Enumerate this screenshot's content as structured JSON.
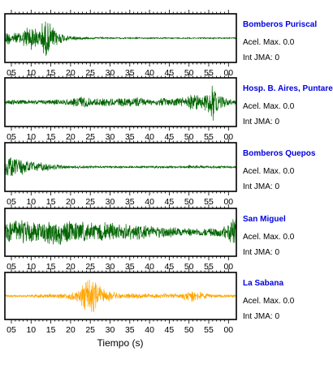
{
  "chart_data": {
    "type": "line",
    "xlabel": "Tiempo (s)",
    "x_tick_labels": [
      "05",
      "10",
      "15",
      "20",
      "25",
      "30",
      "35",
      "40",
      "45",
      "50",
      "55",
      "00"
    ],
    "grid": false,
    "panels": [
      {
        "station": "Bomberos Puriscal",
        "acel_label": "Acel. Max.",
        "acel_value": "0.0",
        "int_label": "Int JMA:",
        "int_value": "0",
        "color": "#006400",
        "envelope": [
          [
            0,
            0.35
          ],
          [
            1.5,
            0.25
          ],
          [
            3,
            0.4
          ],
          [
            4.5,
            0.7
          ],
          [
            5.5,
            0.55
          ],
          [
            7,
            0.45
          ],
          [
            8.5,
            0.95
          ],
          [
            10,
            0.7
          ],
          [
            11.5,
            0.4
          ],
          [
            13,
            0.22
          ],
          [
            15,
            0.12
          ],
          [
            18,
            0.06
          ],
          [
            25,
            0.035
          ],
          [
            40,
            0.03
          ],
          [
            58,
            0.03
          ]
        ]
      },
      {
        "station": "Hosp. B. Aires, Puntare",
        "acel_label": "Acel. Max.",
        "acel_value": "0.0",
        "int_label": "Int JMA:",
        "int_value": "0",
        "color": "#006400",
        "envelope": [
          [
            0,
            0.12
          ],
          [
            5,
            0.1
          ],
          [
            10,
            0.12
          ],
          [
            15,
            0.15
          ],
          [
            18,
            0.35
          ],
          [
            20,
            0.18
          ],
          [
            28,
            0.2
          ],
          [
            32,
            0.3
          ],
          [
            34,
            0.15
          ],
          [
            40,
            0.2
          ],
          [
            44,
            0.25
          ],
          [
            46,
            0.45
          ],
          [
            48,
            0.3
          ],
          [
            50,
            0.6
          ],
          [
            51,
            0.95
          ],
          [
            52,
            0.5
          ],
          [
            54,
            0.25
          ],
          [
            56,
            0.12
          ],
          [
            58,
            0.1
          ]
        ]
      },
      {
        "station": "Bomberos Quepos",
        "acel_label": "Acel. Max.",
        "acel_value": "0.0",
        "int_label": "Int JMA:",
        "int_value": "0",
        "color": "#006400",
        "envelope": [
          [
            0,
            0.55
          ],
          [
            1,
            0.45
          ],
          [
            3,
            0.35
          ],
          [
            6,
            0.25
          ],
          [
            9,
            0.18
          ],
          [
            12,
            0.1
          ],
          [
            15,
            0.06
          ],
          [
            25,
            0.05
          ],
          [
            40,
            0.05
          ],
          [
            45,
            0.07
          ],
          [
            50,
            0.06
          ],
          [
            58,
            0.05
          ]
        ]
      },
      {
        "station": "San Miguel",
        "acel_label": "Acel. Max.",
        "acel_value": "0.0",
        "int_label": "Int JMA:",
        "int_value": "0",
        "color": "#006400",
        "envelope": [
          [
            0,
            0.55
          ],
          [
            4,
            0.6
          ],
          [
            8,
            0.5
          ],
          [
            10,
            0.65
          ],
          [
            15,
            0.55
          ],
          [
            20,
            0.45
          ],
          [
            25,
            0.5
          ],
          [
            30,
            0.4
          ],
          [
            35,
            0.35
          ],
          [
            40,
            0.25
          ],
          [
            45,
            0.22
          ],
          [
            50,
            0.2
          ],
          [
            53,
            0.25
          ],
          [
            55,
            0.4
          ],
          [
            56,
            0.9
          ],
          [
            57,
            0.95
          ],
          [
            58,
            0.85
          ]
        ]
      },
      {
        "station": "La Sabana",
        "acel_label": "Acel. Max.",
        "acel_value": "0.0",
        "int_label": "Int JMA:",
        "int_value": "0",
        "color": "#ffa500",
        "envelope": [
          [
            0,
            0.06
          ],
          [
            5,
            0.07
          ],
          [
            10,
            0.1
          ],
          [
            14,
            0.15
          ],
          [
            17,
            0.3
          ],
          [
            18,
            0.6
          ],
          [
            19.5,
            0.95
          ],
          [
            21,
            0.8
          ],
          [
            22.5,
            0.5
          ],
          [
            24,
            0.3
          ],
          [
            27,
            0.15
          ],
          [
            32,
            0.12
          ],
          [
            40,
            0.1
          ],
          [
            43,
            0.12
          ],
          [
            45,
            0.3
          ],
          [
            46,
            0.35
          ],
          [
            48,
            0.2
          ],
          [
            50,
            0.1
          ],
          [
            58,
            0.06
          ]
        ]
      }
    ]
  }
}
